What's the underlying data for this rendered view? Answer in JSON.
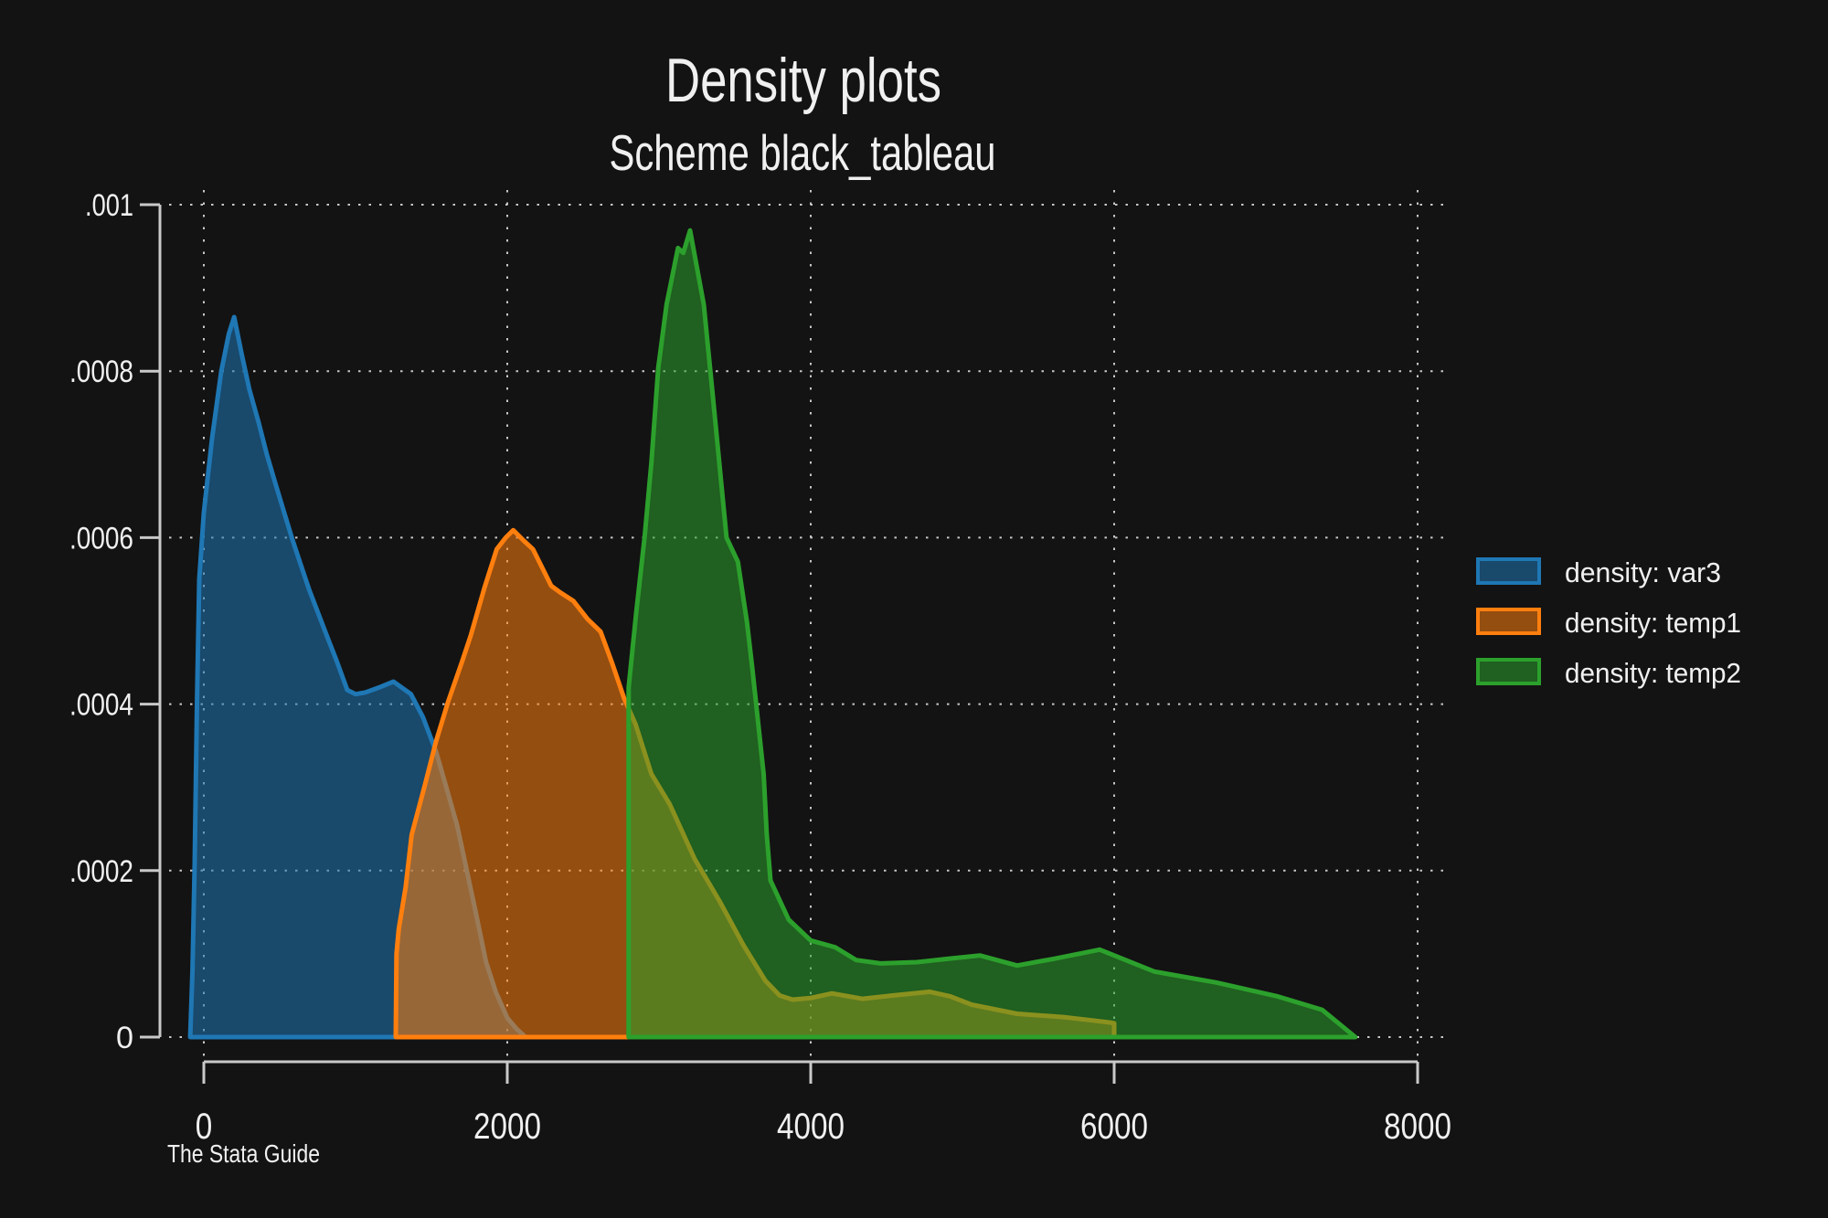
{
  "title": "Density plots",
  "subtitle": "Scheme black_tableau",
  "footer": "The Stata Guide",
  "legend": [
    {
      "label": "density: var3",
      "color": "#1f77b4"
    },
    {
      "label": "density: temp1",
      "color": "#ff7f0e"
    },
    {
      "label": "density: temp2",
      "color": "#2ca02c"
    }
  ],
  "colors": {
    "background": "#131313",
    "text": "#f0f0f0",
    "axis": "#c9c9c9",
    "grid": "#c8c8c8",
    "blue": "#1f77b4",
    "orange": "#ff7f0e",
    "green": "#2ca02c"
  },
  "chart_data": {
    "type": "area",
    "title": "Density plots",
    "subtitle": "Scheme black_tableau",
    "note": "The Stata Guide",
    "xlabel": "",
    "ylabel": "",
    "xlim": [
      0,
      8000
    ],
    "ylim": [
      0,
      0.001
    ],
    "x_ticks": [
      0,
      2000,
      4000,
      6000,
      8000
    ],
    "x_tick_labels": [
      "0",
      "2000",
      "4000",
      "6000",
      "8000"
    ],
    "y_ticks": [
      0,
      0.0002,
      0.0004,
      0.0006,
      0.0008,
      0.001
    ],
    "y_tick_labels": [
      "0",
      ".0002",
      ".0004",
      ".0006",
      ".0008",
      ".001"
    ],
    "grid": "dotted, horizontal and vertical",
    "legend_position": "right",
    "series": [
      {
        "name": "density: var3",
        "color": "#1f77b4",
        "fill_opacity": 0.55,
        "points": [
          [
            -90,
            0
          ],
          [
            -75,
            8e-05
          ],
          [
            -60,
            0.00021
          ],
          [
            -45,
            0.0004
          ],
          [
            -30,
            0.00055
          ],
          [
            0,
            0.00063
          ],
          [
            55,
            0.00072
          ],
          [
            115,
            0.0008
          ],
          [
            165,
            0.000845
          ],
          [
            200,
            0.000865
          ],
          [
            250,
            0.00082
          ],
          [
            300,
            0.000778
          ],
          [
            360,
            0.000739
          ],
          [
            415,
            0.0007
          ],
          [
            465,
            0.000669
          ],
          [
            525,
            0.000633
          ],
          [
            585,
            0.000597
          ],
          [
            645,
            0.000564
          ],
          [
            695,
            0.000537
          ],
          [
            815,
            0.00048
          ],
          [
            875,
            0.000452
          ],
          [
            945,
            0.000417
          ],
          [
            1000,
            0.000412
          ],
          [
            1065,
            0.000414
          ],
          [
            1155,
            0.00042
          ],
          [
            1250,
            0.000427
          ],
          [
            1365,
            0.000412
          ],
          [
            1445,
            0.000384
          ],
          [
            1530,
            0.000343
          ],
          [
            1595,
            0.000302
          ],
          [
            1670,
            0.000254
          ],
          [
            1790,
            0.000152
          ],
          [
            1860,
            9e-05
          ],
          [
            1925,
            5.4e-05
          ],
          [
            2000,
            2.3e-05
          ],
          [
            2060,
            1e-05
          ],
          [
            2120,
            0
          ]
        ]
      },
      {
        "name": "density: temp1",
        "color": "#ff7f0e",
        "fill_opacity": 0.55,
        "points": [
          [
            1265,
            0
          ],
          [
            1270,
            0.0001
          ],
          [
            1285,
            0.00013
          ],
          [
            1330,
            0.00018
          ],
          [
            1370,
            0.000243
          ],
          [
            1460,
            0.000305
          ],
          [
            1530,
            0.000355
          ],
          [
            1610,
            0.000403
          ],
          [
            1700,
            0.00045
          ],
          [
            1760,
            0.000483
          ],
          [
            1850,
            0.00054
          ],
          [
            1930,
            0.000586
          ],
          [
            1990,
            0.0006
          ],
          [
            2040,
            0.000609
          ],
          [
            2110,
            0.000596
          ],
          [
            2170,
            0.000586
          ],
          [
            2290,
            0.000542
          ],
          [
            2350,
            0.000534
          ],
          [
            2435,
            0.000524
          ],
          [
            2530,
            0.000502
          ],
          [
            2615,
            0.000487
          ],
          [
            2690,
            0.00045
          ],
          [
            2770,
            0.000407
          ],
          [
            2845,
            0.000376
          ],
          [
            2950,
            0.000316
          ],
          [
            3070,
            0.00028
          ],
          [
            3235,
            0.000214
          ],
          [
            3400,
            0.000163
          ],
          [
            3555,
            0.000111
          ],
          [
            3700,
            6.8e-05
          ],
          [
            3795,
            5e-05
          ],
          [
            3880,
            4.5e-05
          ],
          [
            4000,
            4.7e-05
          ],
          [
            4140,
            5.25e-05
          ],
          [
            4340,
            4.6e-05
          ],
          [
            4540,
            5e-05
          ],
          [
            4785,
            5.45e-05
          ],
          [
            4920,
            4.9e-05
          ],
          [
            5060,
            3.9e-05
          ],
          [
            5360,
            2.8e-05
          ],
          [
            5665,
            2.4e-05
          ],
          [
            5860,
            2e-05
          ],
          [
            5975,
            1.75e-05
          ],
          [
            6000,
            1.65e-05
          ],
          [
            6000,
            0
          ]
        ]
      },
      {
        "name": "density: temp2",
        "color": "#2ca02c",
        "fill_opacity": 0.55,
        "points": [
          [
            2800,
            0
          ],
          [
            2800,
            0.00042
          ],
          [
            2850,
            0.00051
          ],
          [
            2905,
            0.0006
          ],
          [
            2950,
            0.00069
          ],
          [
            2995,
            0.000804
          ],
          [
            3050,
            0.00088
          ],
          [
            3125,
            0.000948
          ],
          [
            3160,
            0.000942
          ],
          [
            3205,
            0.000969
          ],
          [
            3295,
            0.00088
          ],
          [
            3355,
            0.00077
          ],
          [
            3445,
            0.0006
          ],
          [
            3520,
            0.000571
          ],
          [
            3580,
            0.000498
          ],
          [
            3615,
            0.000443
          ],
          [
            3690,
            0.000316
          ],
          [
            3710,
            0.000243
          ],
          [
            3735,
            0.000188
          ],
          [
            3855,
            0.000141
          ],
          [
            4000,
            0.000116
          ],
          [
            4160,
            0.000108
          ],
          [
            4300,
            9.25e-05
          ],
          [
            4460,
            8.85e-05
          ],
          [
            4700,
            9e-05
          ],
          [
            4900,
            9.4e-05
          ],
          [
            5115,
            9.8e-05
          ],
          [
            5360,
            8.6e-05
          ],
          [
            5600,
            9.4e-05
          ],
          [
            5905,
            0.000105
          ],
          [
            6265,
            7.87e-05
          ],
          [
            6670,
            6.56e-05
          ],
          [
            7070,
            4.92e-05
          ],
          [
            7370,
            3.28e-05
          ],
          [
            7590,
            0
          ]
        ]
      }
    ]
  }
}
